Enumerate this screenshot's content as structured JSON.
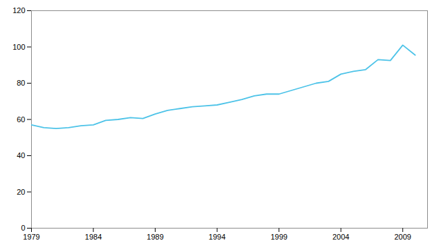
{
  "chart_data": {
    "type": "line",
    "x": [
      1979,
      1980,
      1981,
      1982,
      1983,
      1984,
      1985,
      1986,
      1987,
      1988,
      1989,
      1990,
      1991,
      1992,
      1993,
      1994,
      1995,
      1996,
      1997,
      1998,
      1999,
      2000,
      2001,
      2002,
      2003,
      2004,
      2005,
      2006,
      2007,
      2008,
      2009,
      2010
    ],
    "values": [
      57,
      55.5,
      55,
      55.5,
      56.5,
      57,
      59.5,
      60,
      61,
      60.5,
      63,
      65,
      66,
      67,
      67.5,
      68,
      69.5,
      71,
      73,
      74,
      74,
      76,
      78,
      80,
      81,
      85,
      86.5,
      87.5,
      93,
      92.5,
      101,
      95.5
    ],
    "color": "#4DC3E8",
    "xlim": [
      1979,
      2011
    ],
    "ylim": [
      0,
      120
    ],
    "xticks": [
      1979,
      1984,
      1989,
      1994,
      1999,
      2004,
      2009
    ],
    "yticks": [
      0,
      20,
      40,
      60,
      80,
      100,
      120
    ],
    "grid": false
  }
}
